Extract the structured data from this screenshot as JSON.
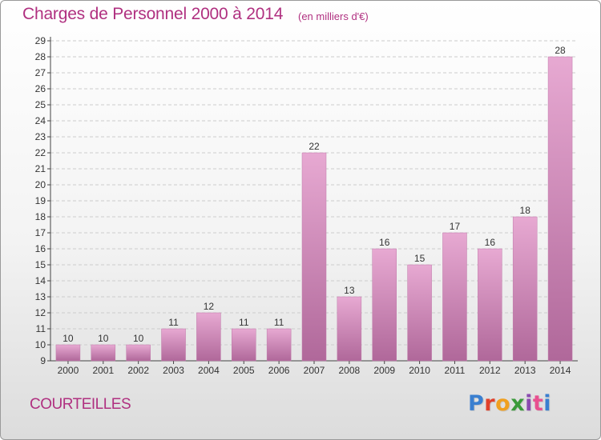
{
  "header": {
    "title": "Charges de Personnel 2000 à 2014",
    "subtitle": "(en milliers d'€)"
  },
  "footer": {
    "city": "COURTEILLES",
    "logo_text": "Proxiti",
    "logo_colors": [
      "#3a7fd0",
      "#e0402a",
      "#f0a020",
      "#3a9a3a",
      "#8a4ab0",
      "#e85090",
      "#3a7fd0"
    ]
  },
  "colors": {
    "bar_top": "#e7a9d2",
    "bar_bottom": "#b0689a",
    "grid": "#cccccc",
    "text_accent": "#b03080"
  },
  "chart_data": {
    "type": "bar",
    "title": "Charges de Personnel 2000 à 2014",
    "subtitle": "(en milliers d'€)",
    "xlabel": "",
    "ylabel": "",
    "categories": [
      "2000",
      "2001",
      "2002",
      "2003",
      "2004",
      "2005",
      "2006",
      "2007",
      "2008",
      "2009",
      "2010",
      "2011",
      "2012",
      "2013",
      "2014"
    ],
    "values": [
      10,
      10,
      10,
      11,
      12,
      11,
      11,
      22,
      13,
      16,
      15,
      17,
      16,
      18,
      28
    ],
    "data_labels": [
      "10",
      "10",
      "10",
      "11",
      "12",
      "11",
      "11",
      "22",
      "13",
      "16",
      "15",
      "17",
      "16",
      "18",
      "28"
    ],
    "ylim": [
      9,
      29
    ],
    "yticks": [
      9,
      10,
      11,
      12,
      13,
      14,
      15,
      16,
      17,
      18,
      19,
      20,
      21,
      22,
      23,
      24,
      25,
      26,
      27,
      28,
      29
    ],
    "grid": true,
    "legend": "none"
  }
}
